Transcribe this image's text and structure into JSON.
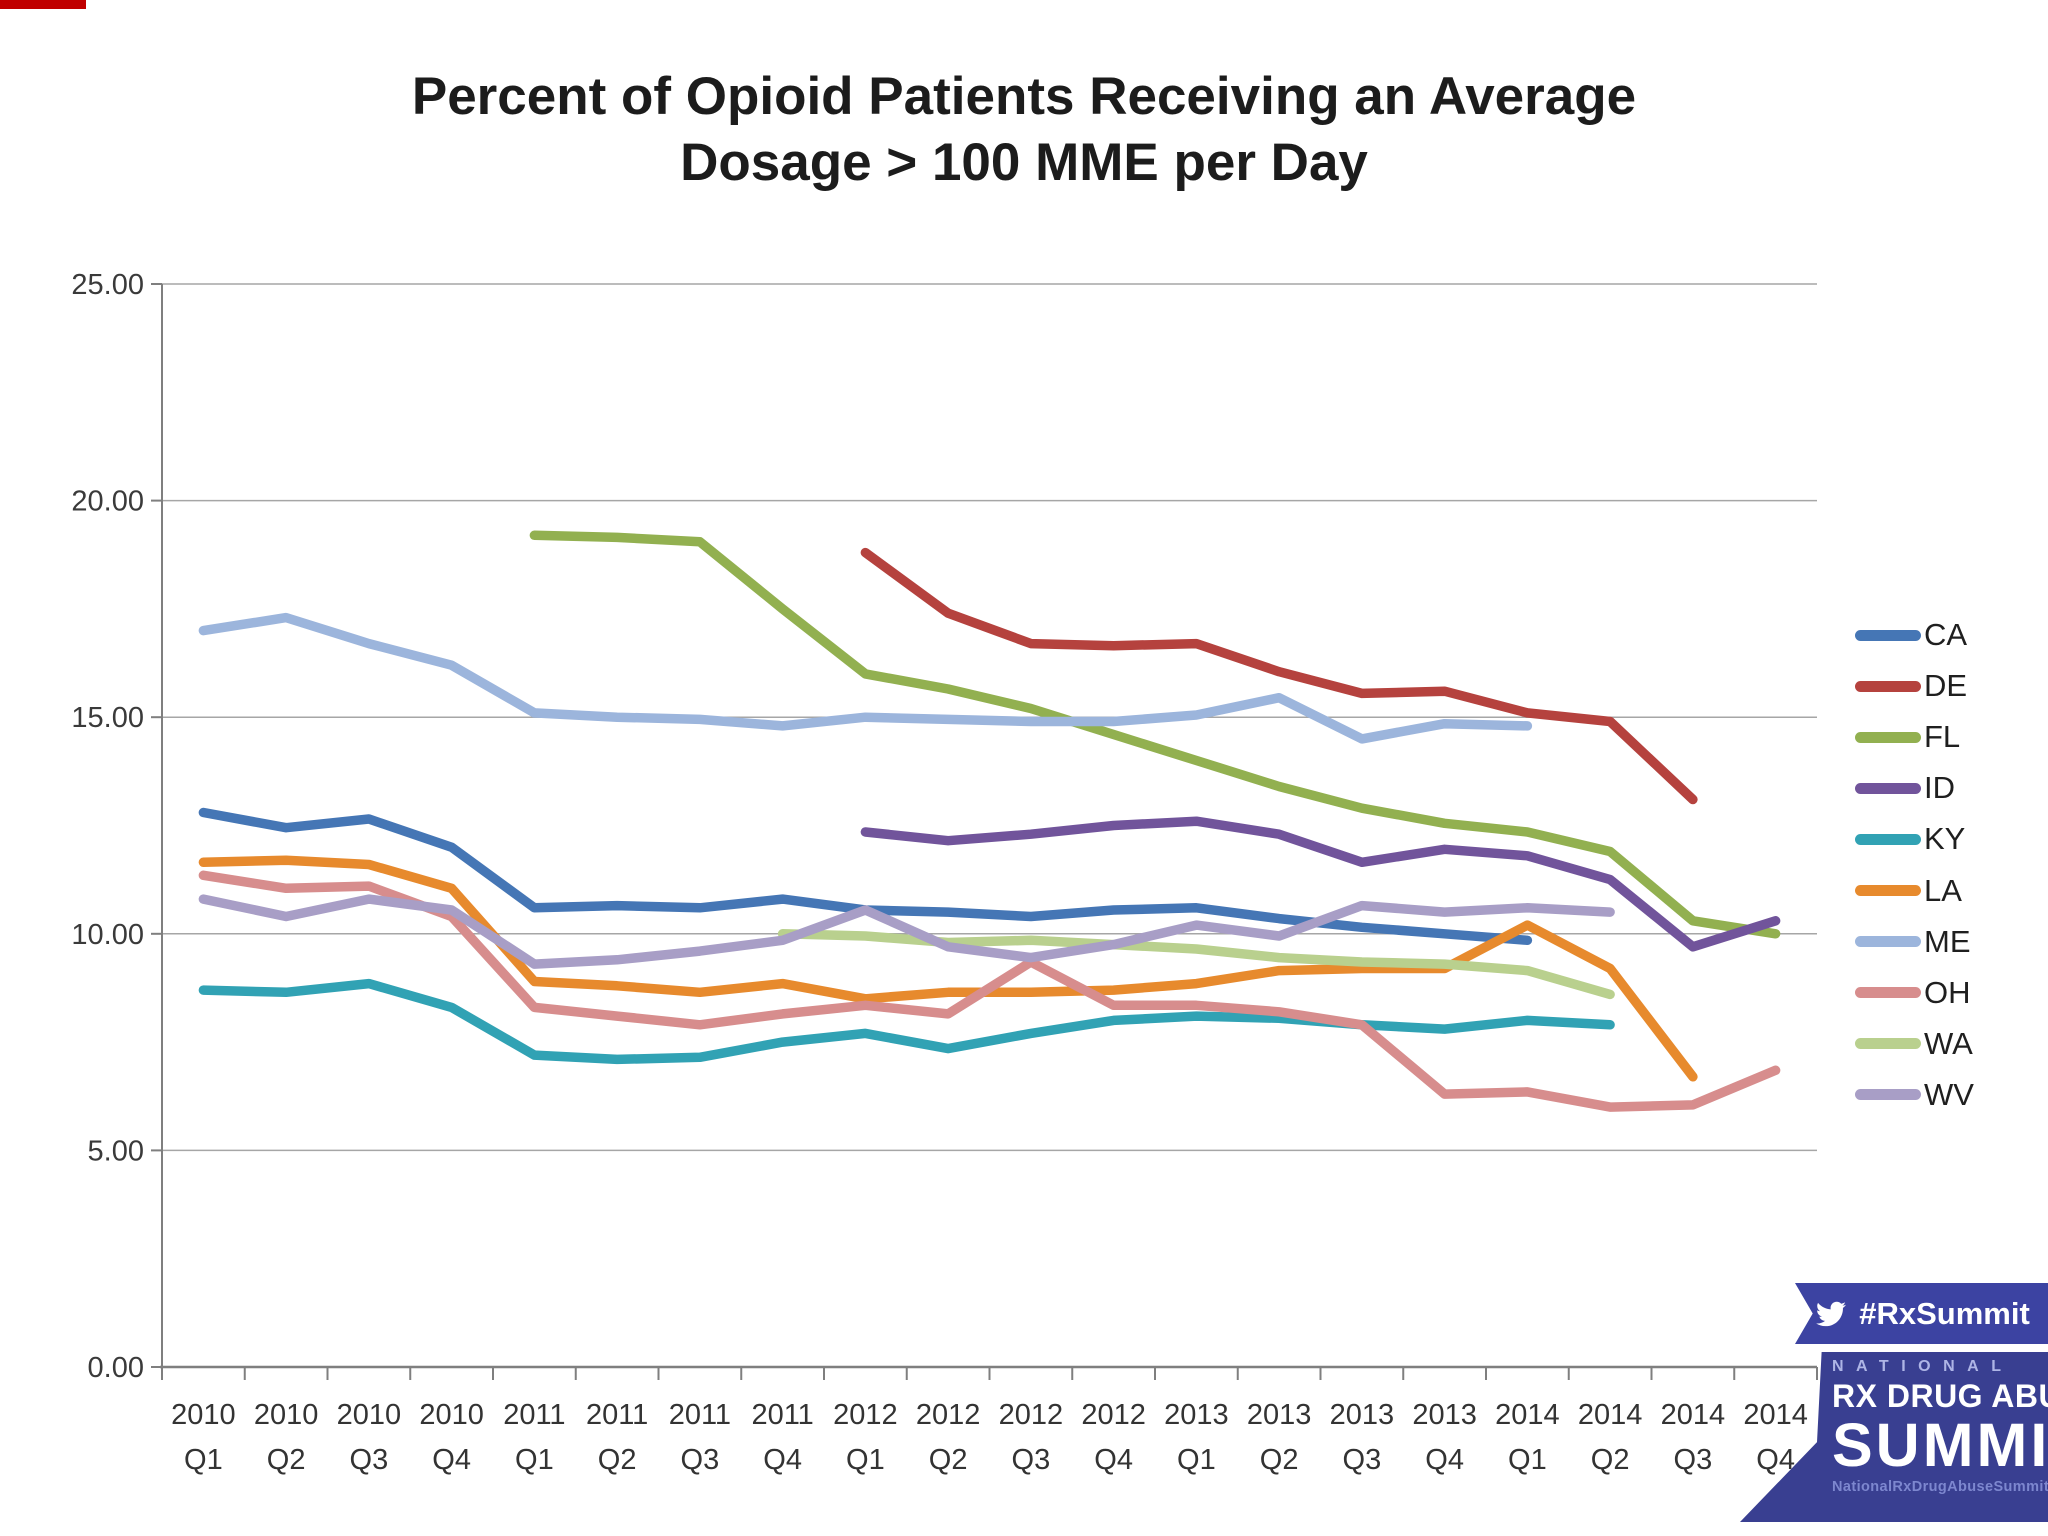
{
  "title": {
    "line1": "Percent of Opioid Patients Receiving an Average",
    "line2": "Dosage > 100 MME per Day"
  },
  "chart_data": {
    "type": "line",
    "title": "Percent of Opioid Patients Receiving an Average Dosage > 100 MME per Day",
    "xlabel": "",
    "ylabel": "",
    "ylim": [
      0,
      25
    ],
    "y_tick_step": 5,
    "y_tick_labels": [
      "0.00",
      "5.00",
      "10.00",
      "15.00",
      "20.00",
      "25.00"
    ],
    "grid": "horizontal",
    "legend_position": "right",
    "categories": [
      {
        "year": "2010",
        "q": "Q1"
      },
      {
        "year": "2010",
        "q": "Q2"
      },
      {
        "year": "2010",
        "q": "Q3"
      },
      {
        "year": "2010",
        "q": "Q4"
      },
      {
        "year": "2011",
        "q": "Q1"
      },
      {
        "year": "2011",
        "q": "Q2"
      },
      {
        "year": "2011",
        "q": "Q3"
      },
      {
        "year": "2011",
        "q": "Q4"
      },
      {
        "year": "2012",
        "q": "Q1"
      },
      {
        "year": "2012",
        "q": "Q2"
      },
      {
        "year": "2012",
        "q": "Q3"
      },
      {
        "year": "2012",
        "q": "Q4"
      },
      {
        "year": "2013",
        "q": "Q1"
      },
      {
        "year": "2013",
        "q": "Q2"
      },
      {
        "year": "2013",
        "q": "Q3"
      },
      {
        "year": "2013",
        "q": "Q4"
      },
      {
        "year": "2014",
        "q": "Q1"
      },
      {
        "year": "2014",
        "q": "Q2"
      },
      {
        "year": "2014",
        "q": "Q3"
      },
      {
        "year": "2014",
        "q": "Q4"
      }
    ],
    "series": [
      {
        "name": "CA",
        "color": "#4576b5",
        "values": [
          12.8,
          12.45,
          12.65,
          12.0,
          10.6,
          10.65,
          10.6,
          10.8,
          10.55,
          10.5,
          10.4,
          10.55,
          10.6,
          10.35,
          10.15,
          10.0,
          9.85,
          null,
          null,
          null
        ]
      },
      {
        "name": "DE",
        "color": "#b5423e",
        "values": [
          null,
          null,
          null,
          null,
          null,
          null,
          null,
          null,
          18.8,
          17.4,
          16.7,
          16.65,
          16.7,
          16.05,
          15.55,
          15.6,
          15.1,
          14.9,
          13.1,
          null
        ]
      },
      {
        "name": "FL",
        "color": "#92b050",
        "values": [
          null,
          null,
          null,
          null,
          19.2,
          19.15,
          19.05,
          17.5,
          16.0,
          15.65,
          15.2,
          14.6,
          14.0,
          13.4,
          12.9,
          12.55,
          12.35,
          11.9,
          10.3,
          10.0
        ]
      },
      {
        "name": "ID",
        "color": "#71549b",
        "values": [
          null,
          null,
          null,
          null,
          null,
          null,
          null,
          null,
          12.35,
          12.15,
          12.3,
          12.5,
          12.6,
          12.3,
          11.65,
          11.95,
          11.8,
          11.25,
          9.7,
          10.3
        ]
      },
      {
        "name": "KY",
        "color": "#31a2b4",
        "values": [
          8.7,
          8.65,
          8.85,
          8.3,
          7.2,
          7.1,
          7.15,
          7.5,
          7.7,
          7.35,
          7.7,
          8.0,
          8.1,
          8.05,
          7.9,
          7.8,
          8.0,
          7.9,
          null,
          null
        ]
      },
      {
        "name": "LA",
        "color": "#e78a2d",
        "values": [
          11.65,
          11.7,
          11.6,
          11.05,
          8.9,
          8.8,
          8.65,
          8.85,
          8.5,
          8.65,
          8.65,
          8.7,
          8.85,
          9.15,
          9.2,
          9.2,
          10.2,
          9.2,
          6.7,
          null
        ]
      },
      {
        "name": "ME",
        "color": "#9cb5dc",
        "values": [
          17.0,
          17.3,
          16.7,
          16.2,
          15.1,
          15.0,
          14.95,
          14.8,
          15.0,
          14.95,
          14.9,
          14.9,
          15.05,
          15.45,
          14.5,
          14.85,
          14.8,
          null,
          null,
          null
        ]
      },
      {
        "name": "OH",
        "color": "#d78d8d",
        "values": [
          11.35,
          11.05,
          11.1,
          10.4,
          8.3,
          8.1,
          7.9,
          8.15,
          8.35,
          8.15,
          9.35,
          8.35,
          8.35,
          8.2,
          7.9,
          6.3,
          6.35,
          6.0,
          6.05,
          6.85
        ]
      },
      {
        "name": "WA",
        "color": "#b9d08e",
        "values": [
          null,
          null,
          null,
          null,
          null,
          null,
          null,
          10.0,
          9.95,
          9.8,
          9.85,
          9.75,
          9.65,
          9.45,
          9.35,
          9.3,
          9.15,
          8.6,
          null,
          null
        ]
      },
      {
        "name": "WV",
        "color": "#a89ec6",
        "values": [
          10.8,
          10.4,
          10.8,
          10.55,
          9.3,
          9.4,
          9.6,
          9.85,
          10.55,
          9.7,
          9.45,
          9.75,
          10.2,
          9.95,
          10.65,
          10.5,
          10.6,
          10.5,
          null,
          null
        ]
      }
    ]
  },
  "branding": {
    "hashtag": "#RxSummit",
    "national": "NATIONAL",
    "rx_drug_abuse": "RX DRUG ABUSE",
    "summit": "SUMMIT",
    "website": "NationalRxDrugAbuseSummit.org"
  }
}
